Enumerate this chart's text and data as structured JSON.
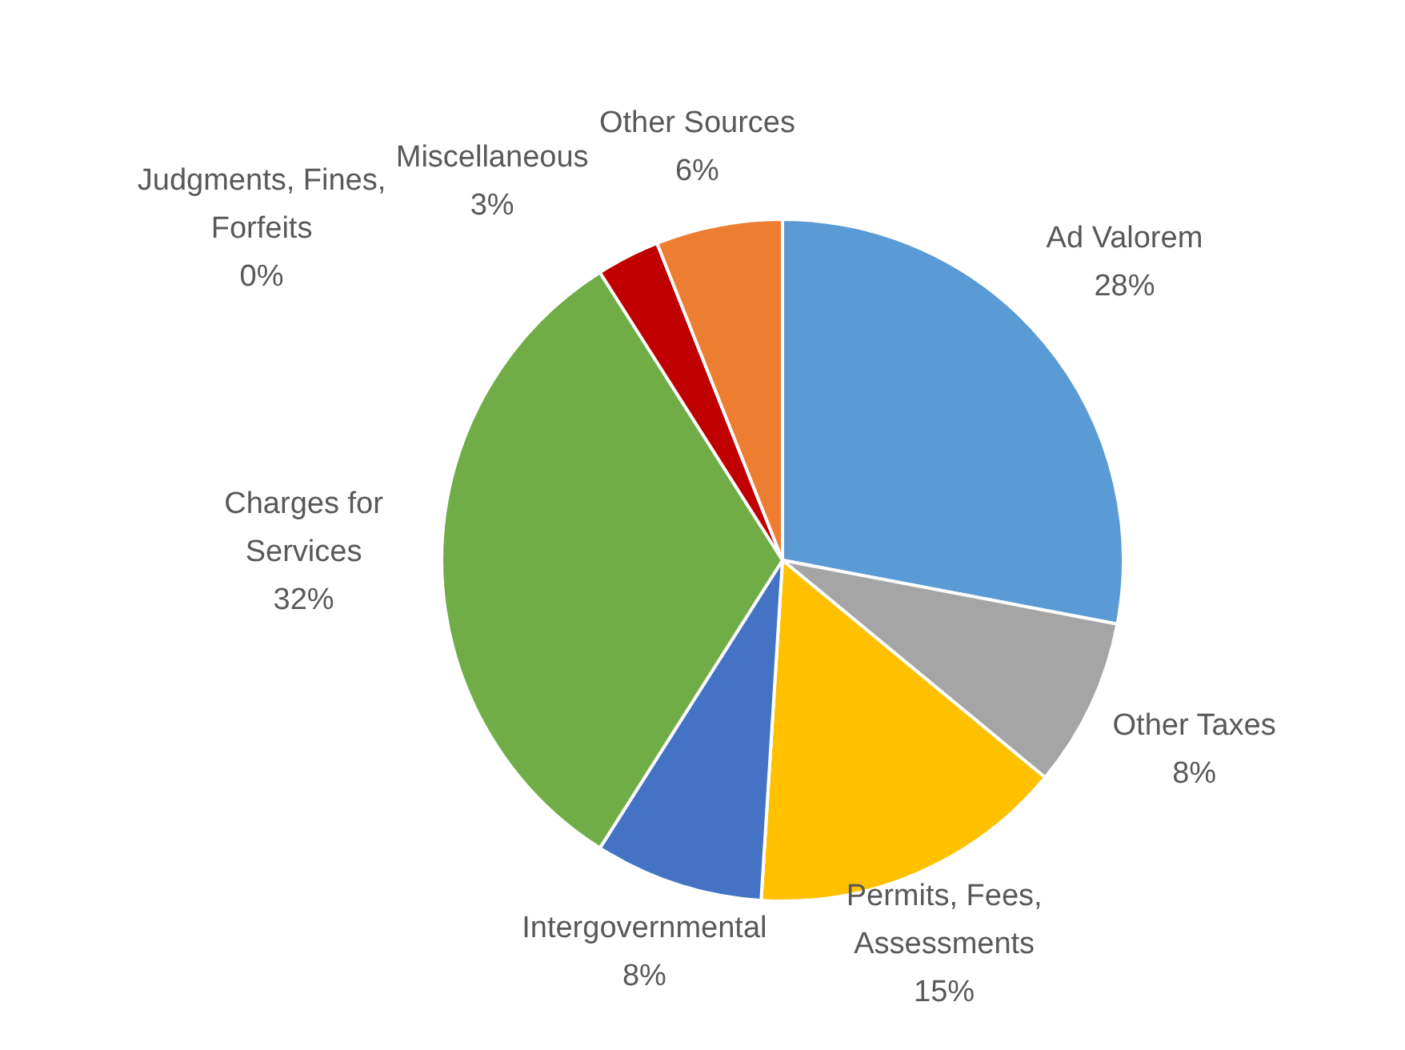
{
  "chart_data": {
    "type": "pie",
    "categories": [
      "Ad Valorem",
      "Other Taxes",
      "Permits, Fees, Assessments",
      "Intergovernmental",
      "Charges for Services",
      "Judgments, Fines, Forfeits",
      "Miscellaneous",
      "Other Sources"
    ],
    "values": [
      28,
      8,
      15,
      8,
      32,
      0,
      3,
      6
    ],
    "colors": [
      "#5b9bd5",
      "#a5a5a5",
      "#ffc000",
      "#4472c4",
      "#70ad47",
      "#000000",
      "#c00000",
      "#ed7d31"
    ],
    "value_labels": [
      "28%",
      "8%",
      "15%",
      "8%",
      "32%",
      "0%",
      "3%",
      "6%"
    ],
    "legend": false
  }
}
